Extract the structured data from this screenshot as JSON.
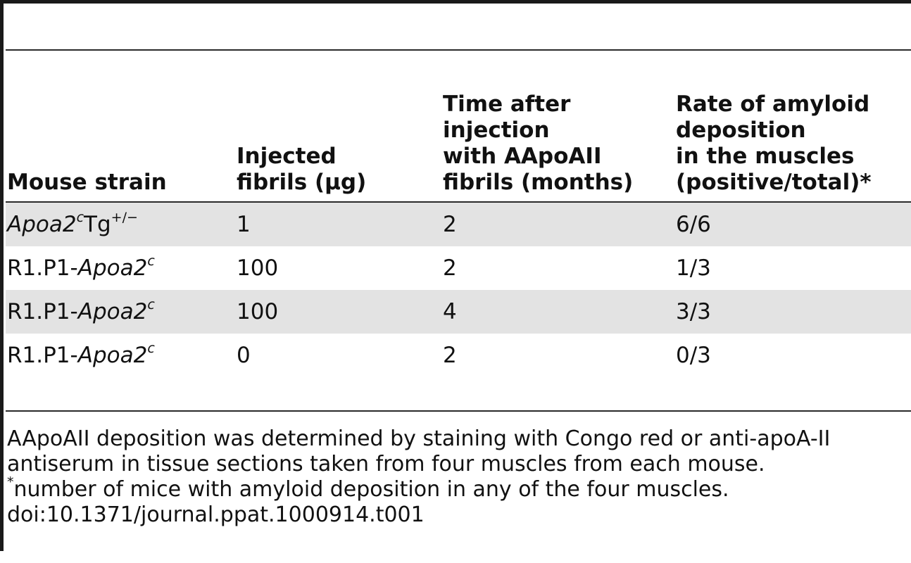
{
  "table": {
    "headers": [
      {
        "lines": [
          "Mouse strain"
        ]
      },
      {
        "lines": [
          "Injected",
          "fibrils (μg)"
        ]
      },
      {
        "lines": [
          "Time after",
          "injection",
          "with AApoAII",
          "fibrils (months)"
        ]
      },
      {
        "lines": [
          "Rate of amyloid",
          "deposition",
          "in the muscles",
          "(positive/total)*"
        ]
      }
    ],
    "rows": [
      {
        "strain_prefix": "",
        "strain_gene": "Apoa2",
        "strain_sup": "c",
        "strain_suffix": "Tg",
        "strain_suffix_sup": "+/−",
        "fibrils": "1",
        "months": "2",
        "rate": "6/6"
      },
      {
        "strain_prefix": "R1.P1-",
        "strain_gene": "Apoa2",
        "strain_sup": "c",
        "strain_suffix": "",
        "strain_suffix_sup": "",
        "fibrils": "100",
        "months": "2",
        "rate": "1/3"
      },
      {
        "strain_prefix": "R1.P1-",
        "strain_gene": "Apoa2",
        "strain_sup": "c",
        "strain_suffix": "",
        "strain_suffix_sup": "",
        "fibrils": "100",
        "months": "4",
        "rate": "3/3"
      },
      {
        "strain_prefix": "R1.P1-",
        "strain_gene": "Apoa2",
        "strain_sup": "c",
        "strain_suffix": "",
        "strain_suffix_sup": "",
        "fibrils": "0",
        "months": "2",
        "rate": "0/3"
      }
    ]
  },
  "footnotes": {
    "line1": "AApoAII deposition was determined by staining with Congo red or anti-apoA-II",
    "line2": "antiserum in tissue sections taken from four muscles from each mouse.",
    "line3_mark": "*",
    "line3_text": "number of mice with amyloid deposition in any of the four muscles.",
    "doi": "doi:10.1371/journal.ppat.1000914.t001"
  }
}
